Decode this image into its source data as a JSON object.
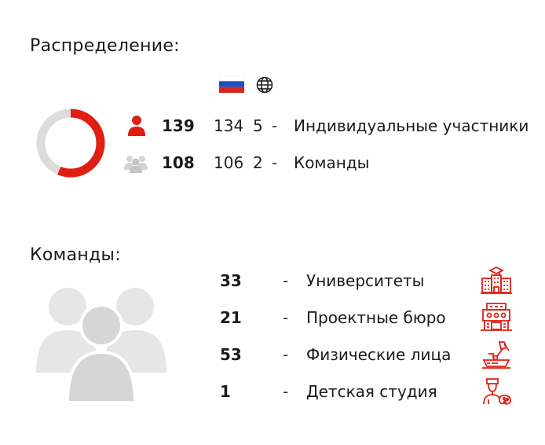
{
  "distribution": {
    "title": "Распределение:",
    "columns": {
      "ru_flag": "russia-flag-icon",
      "world": "globe-icon"
    },
    "donut": {
      "individual_share": 139,
      "teams_share": 108,
      "accent": "#e01e12",
      "muted": "#dcdcdc"
    },
    "rows": [
      {
        "icon": "person-icon",
        "total": "139",
        "ru": "134",
        "world": "5",
        "dash": "-",
        "label": "Индивидуальные участники"
      },
      {
        "icon": "group-icon",
        "total": "108",
        "ru": "106",
        "world": "2",
        "dash": "-",
        "label": "Команды"
      }
    ]
  },
  "teams": {
    "title": "Команды:",
    "rows": [
      {
        "count": "33",
        "dash": "-",
        "label": "Университеты",
        "icon": "university-icon"
      },
      {
        "count": "21",
        "dash": "-",
        "label": "Проектные бюро",
        "icon": "office-building-icon"
      },
      {
        "count": "53",
        "dash": "-",
        "label": "Физические лица",
        "icon": "drafting-desk-icon"
      },
      {
        "count": "1",
        "dash": "-",
        "label": "Детская студия",
        "icon": "child-palette-icon"
      }
    ]
  },
  "colors": {
    "accent": "#e01e12",
    "gray": "#d9d9d9",
    "text": "#1a1a1a"
  }
}
